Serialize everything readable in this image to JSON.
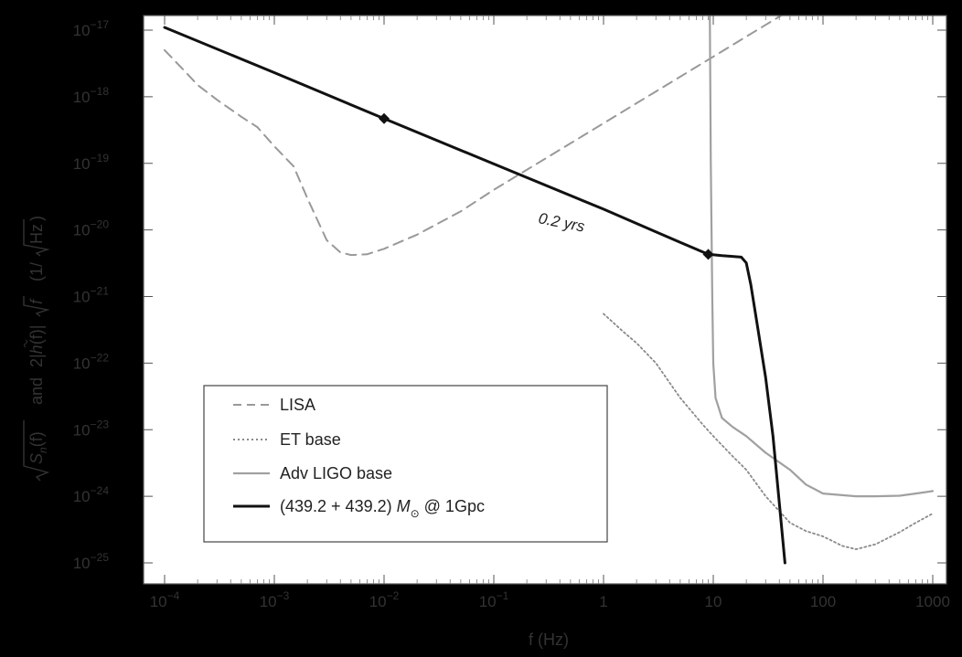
{
  "chart_data": {
    "type": "line",
    "title": "",
    "xlabel": "f (Hz)",
    "ylabel": {
      "part1": "S",
      "part1_sub": "n",
      "part1_arg": "(f)",
      "and": "and",
      "part2_prefix": "2|",
      "part2_h": "h",
      "part2_arg": "(f)|",
      "part2_f": "f",
      "units_open": "(1/",
      "units_inner": "Hz",
      "units_close": ")"
    },
    "x_scale": "log",
    "y_scale": "log",
    "xlim": [
      0.0001,
      1000
    ],
    "ylim": [
      1e-25,
      1e-17
    ],
    "x_ticks": [
      {
        "value": 0.0001,
        "base": "10",
        "exp": "−4"
      },
      {
        "value": 0.001,
        "base": "10",
        "exp": "−3"
      },
      {
        "value": 0.01,
        "base": "10",
        "exp": "−2"
      },
      {
        "value": 0.1,
        "base": "10",
        "exp": "−1"
      },
      {
        "value": 1,
        "base": "1",
        "exp": ""
      },
      {
        "value": 10,
        "base": "10",
        "exp": ""
      },
      {
        "value": 100,
        "base": "100",
        "exp": ""
      },
      {
        "value": 1000,
        "base": "1000",
        "exp": ""
      }
    ],
    "y_ticks": [
      {
        "value": 1e-17,
        "base": "10",
        "exp": "−17"
      },
      {
        "value": 1e-18,
        "base": "10",
        "exp": "−18"
      },
      {
        "value": 1e-19,
        "base": "10",
        "exp": "−19"
      },
      {
        "value": 1e-20,
        "base": "10",
        "exp": "−20"
      },
      {
        "value": 1e-21,
        "base": "10",
        "exp": "−21"
      },
      {
        "value": 1e-22,
        "base": "10",
        "exp": "−22"
      },
      {
        "value": 1e-23,
        "base": "10",
        "exp": "−23"
      },
      {
        "value": 1e-24,
        "base": "10",
        "exp": "−24"
      },
      {
        "value": 1e-25,
        "base": "10",
        "exp": "−25"
      }
    ],
    "series": [
      {
        "name": "LISA",
        "style": "dashed",
        "color": "#999999",
        "points": [
          [
            0.0001,
            5e-18
          ],
          [
            0.00015,
            2.5e-18
          ],
          [
            0.0002,
            1.5e-18
          ],
          [
            0.0003,
            9e-19
          ],
          [
            0.0005,
            5e-19
          ],
          [
            0.0007,
            3.5e-19
          ],
          [
            0.001,
            1.8e-19
          ],
          [
            0.0015,
            9e-20
          ],
          [
            0.002,
            3e-20
          ],
          [
            0.003,
            7e-21
          ],
          [
            0.004,
            4.6e-21
          ],
          [
            0.005,
            4.2e-21
          ],
          [
            0.007,
            4.3e-21
          ],
          [
            0.01,
            5.2e-21
          ],
          [
            0.02,
            8.5e-21
          ],
          [
            0.05,
            1.9e-20
          ],
          [
            0.1,
            4e-20
          ],
          [
            0.3,
            1.2e-19
          ],
          [
            1,
            4e-19
          ],
          [
            3,
            1.2e-18
          ],
          [
            10,
            4e-18
          ],
          [
            30,
            1.2e-17
          ],
          [
            50,
            2e-17
          ]
        ]
      },
      {
        "name": "ET base",
        "style": "dotted",
        "color": "#8a8a8a",
        "points": [
          [
            1,
            5.5e-22
          ],
          [
            1.5,
            3e-22
          ],
          [
            2,
            2e-22
          ],
          [
            3,
            1e-22
          ],
          [
            5,
            3e-23
          ],
          [
            8,
            1.2e-23
          ],
          [
            10,
            8e-24
          ],
          [
            15,
            4e-24
          ],
          [
            20,
            2.5e-24
          ],
          [
            30,
            1e-24
          ],
          [
            50,
            4e-25
          ],
          [
            70,
            3e-25
          ],
          [
            100,
            2.5e-25
          ],
          [
            150,
            1.8e-25
          ],
          [
            200,
            1.6e-25
          ],
          [
            300,
            1.9e-25
          ],
          [
            500,
            2.9e-25
          ],
          [
            700,
            4e-25
          ],
          [
            1000,
            5.5e-25
          ]
        ]
      },
      {
        "name": "Adv LIGO base",
        "style": "solid",
        "color": "#a0a0a0",
        "points": [
          [
            9.3,
            2e-17
          ],
          [
            9.5,
            1e-19
          ],
          [
            9.8,
            1e-21
          ],
          [
            10,
            1e-22
          ],
          [
            10.5,
            3e-23
          ],
          [
            12,
            1.5e-23
          ],
          [
            15,
            1.1e-23
          ],
          [
            20,
            8e-24
          ],
          [
            30,
            4.5e-24
          ],
          [
            50,
            2.5e-24
          ],
          [
            70,
            1.5e-24
          ],
          [
            100,
            1.1e-24
          ],
          [
            200,
            1e-24
          ],
          [
            300,
            1e-24
          ],
          [
            500,
            1.02e-24
          ],
          [
            700,
            1.1e-24
          ],
          [
            1000,
            1.2e-24
          ]
        ]
      },
      {
        "name": "(439.2 + 439.2) M⊙ @ 1Gpc",
        "style": "solid",
        "color": "#111111",
        "points": [
          [
            0.0001,
            1.1e-17
          ],
          [
            0.001,
            2.3e-18
          ],
          [
            0.01,
            4.7e-19
          ],
          [
            0.1,
            9.8e-20
          ],
          [
            1,
            2.05e-20
          ],
          [
            5,
            6.5e-21
          ],
          [
            9,
            4.3e-21
          ],
          [
            12,
            4.1e-21
          ],
          [
            15,
            4e-21
          ],
          [
            18,
            3.9e-21
          ],
          [
            20,
            3.2e-21
          ],
          [
            22,
            1.5e-21
          ],
          [
            25,
            4e-22
          ],
          [
            30,
            6e-23
          ],
          [
            35,
            8e-24
          ],
          [
            40,
            8e-25
          ],
          [
            45,
            1e-25
          ]
        ]
      }
    ],
    "markers": [
      {
        "x": 0.01,
        "y": 4.7e-19
      },
      {
        "x": 9,
        "y": 4.3e-21
      }
    ],
    "annotations": [
      {
        "text": "0.2 yrs",
        "x": 0.25,
        "y": 2.7e-20
      }
    ],
    "legend": {
      "position": "lower-left",
      "entries": [
        {
          "label": "LISA",
          "style": "dashed",
          "color": "#999999"
        },
        {
          "label": "ET base",
          "style": "dotted",
          "color": "#8a8a8a"
        },
        {
          "label": "Adv LIGO base",
          "style": "solid",
          "color": "#a0a0a0"
        },
        {
          "label_prefix": "(439.2 + 439.2) ",
          "label_M": "M",
          "label_sun": "⊙",
          "label_suffix": " @ 1Gpc",
          "style": "solid",
          "color": "#111111"
        }
      ]
    },
    "grid": false
  }
}
